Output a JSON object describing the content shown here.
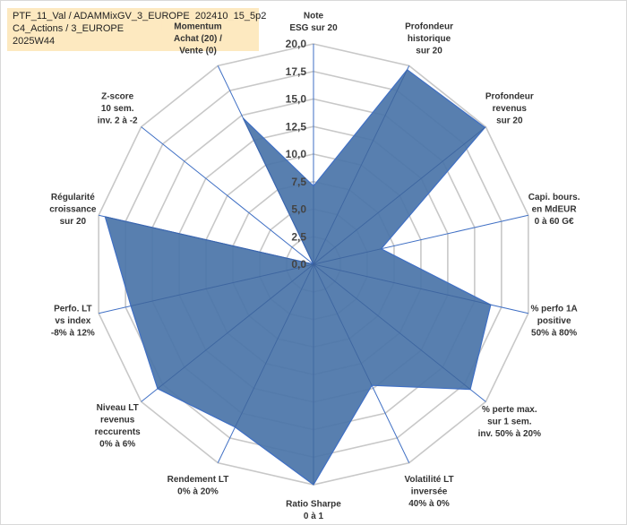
{
  "header": {
    "line1": "PTF_11_Val / ADAMMixGV_3_EUROPE_202410_15_5p2",
    "line2": "C4_Actions / 3_EUROPE",
    "line3": "2025W44"
  },
  "colors": {
    "fill": "#4a74a8",
    "stroke": "#3f6fc4",
    "grid": "#c8c8c8",
    "header_bg": "#fde9c0",
    "highlight_bg": "#fde9c0"
  },
  "chart_data": {
    "type": "radar",
    "rmax": 20,
    "ticks": [
      "0,0",
      "2,5",
      "5,0",
      "7,5",
      "10,0",
      "12,5",
      "15,0",
      "17,5",
      "20,0"
    ],
    "grid": true,
    "legend": "none",
    "axes": [
      {
        "label": [
          "Note",
          "ESG sur 20"
        ],
        "value": 7.1
      },
      {
        "label": [
          "Profondeur",
          "historique",
          "sur 20"
        ],
        "value": 19.6
      },
      {
        "label": [
          "Profondeur",
          "revenus",
          "sur 20"
        ],
        "value": 19.9
      },
      {
        "label": [
          "Capi. bours.",
          "en MdEUR",
          "0 à 60 G€"
        ],
        "value": 6.3
      },
      {
        "label": [
          "% perfo 1A",
          "positive",
          "50% à 80%"
        ],
        "value": 16.5
      },
      {
        "label": [
          "% perte max.",
          "sur 1 sem.",
          "inv. 50% à 20%"
        ],
        "value": 18.2
      },
      {
        "label": [
          "Volatilité LT",
          "inversée",
          "40% à 0%"
        ],
        "value": 12.2
      },
      {
        "label": [
          "Ratio Sharpe",
          "0 à 1"
        ],
        "value": 20.0
      },
      {
        "label": [
          "Rendement LT",
          "0% à 20%"
        ],
        "value": 16.4
      },
      {
        "label": [
          "Niveau LT",
          "revenus",
          "reccurents",
          "0% à 6%"
        ],
        "value": 18.1
      },
      {
        "label": [
          "Perfo. LT",
          "vs index",
          "-8% à 12%"
        ],
        "value": 17.0
      },
      {
        "label": [
          "Régularité",
          "croissance",
          "sur 20"
        ],
        "value": 19.4
      },
      {
        "label": [
          "Z-score",
          "10 sem.",
          "inv. 2 à -2"
        ],
        "value": 0.0
      },
      {
        "label": [
          "Momentum",
          "Achat (20) /",
          "Vente (0)"
        ],
        "value": 14.7,
        "highlight_line": 0
      }
    ]
  }
}
